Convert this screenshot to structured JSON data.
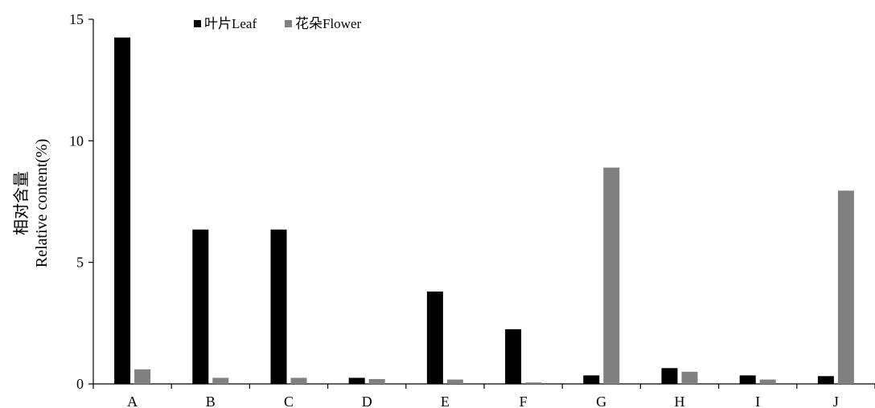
{
  "chart_data": {
    "type": "bar",
    "categories": [
      "A",
      "B",
      "C",
      "D",
      "E",
      "F",
      "G",
      "H",
      "I",
      "J"
    ],
    "series": [
      {
        "name": "叶片Leaf",
        "color": "#000000",
        "values": [
          14.25,
          6.35,
          6.35,
          0.25,
          3.8,
          2.25,
          0.35,
          0.65,
          0.35,
          0.32
        ]
      },
      {
        "name": "花朵Flower",
        "color": "#808080",
        "values": [
          0.6,
          0.25,
          0.25,
          0.2,
          0.18,
          0.06,
          8.9,
          0.5,
          0.18,
          7.95
        ]
      }
    ],
    "ylabel_cn": "相对含量",
    "ylabel": "Relative content(%)",
    "xlabel": "",
    "ylim": [
      0,
      15
    ],
    "yticks": [
      "0",
      "5",
      "10",
      "15"
    ],
    "grid": false,
    "legend_position": "top-left"
  }
}
